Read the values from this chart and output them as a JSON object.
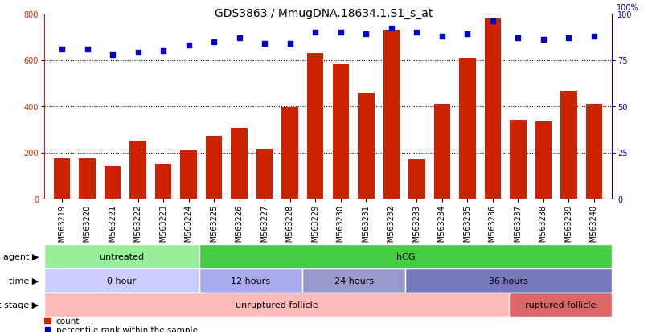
{
  "title": "GDS3863 / MmugDNA.18634.1.S1_s_at",
  "samples": [
    "GSM563219",
    "GSM563220",
    "GSM563221",
    "GSM563222",
    "GSM563223",
    "GSM563224",
    "GSM563225",
    "GSM563226",
    "GSM563227",
    "GSM563228",
    "GSM563229",
    "GSM563230",
    "GSM563231",
    "GSM563232",
    "GSM563233",
    "GSM563234",
    "GSM563235",
    "GSM563236",
    "GSM563237",
    "GSM563238",
    "GSM563239",
    "GSM563240"
  ],
  "counts": [
    175,
    175,
    140,
    250,
    150,
    210,
    270,
    305,
    215,
    395,
    630,
    580,
    455,
    730,
    170,
    410,
    610,
    780,
    340,
    335,
    465,
    410
  ],
  "percentiles": [
    81,
    81,
    78,
    79,
    80,
    83,
    85,
    87,
    84,
    84,
    90,
    90,
    89,
    92,
    90,
    88,
    89,
    96,
    87,
    86,
    87,
    88
  ],
  "ylim_left": [
    0,
    800
  ],
  "ylim_right": [
    0,
    100
  ],
  "yticks_left": [
    0,
    200,
    400,
    600,
    800
  ],
  "yticks_right": [
    0,
    25,
    50,
    75,
    100
  ],
  "bar_color": "#cc2200",
  "scatter_color": "#0000cc",
  "bg_color": "#ffffff",
  "agent_segments": [
    {
      "text": "untreated",
      "start": 0,
      "end": 6,
      "color": "#99ee99"
    },
    {
      "text": "hCG",
      "start": 6,
      "end": 22,
      "color": "#44cc44"
    }
  ],
  "time_segments": [
    {
      "text": "0 hour",
      "start": 0,
      "end": 6,
      "color": "#ccccff"
    },
    {
      "text": "12 hours",
      "start": 6,
      "end": 10,
      "color": "#aaaaee"
    },
    {
      "text": "24 hours",
      "start": 10,
      "end": 14,
      "color": "#9999cc"
    },
    {
      "text": "36 hours",
      "start": 14,
      "end": 22,
      "color": "#7777bb"
    }
  ],
  "dev_segments": [
    {
      "text": "unruptured follicle",
      "start": 0,
      "end": 18,
      "color": "#ffbbbb"
    },
    {
      "text": "ruptured follicle",
      "start": 18,
      "end": 22,
      "color": "#dd6666"
    }
  ],
  "hgrid_vals": [
    200,
    400,
    600
  ],
  "tick_fontsize": 7,
  "title_fontsize": 10,
  "annot_fontsize": 8,
  "legend_fontsize": 7.5,
  "row_label_fontsize": 8
}
